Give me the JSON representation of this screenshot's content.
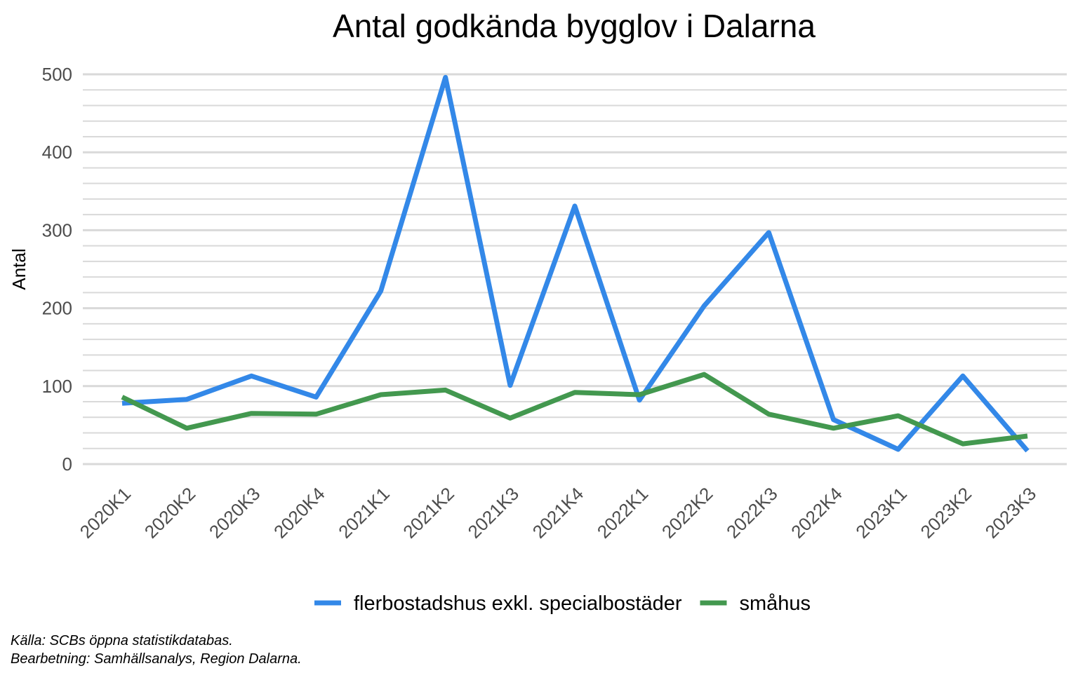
{
  "chart_data": {
    "type": "line",
    "title": "Antal godkända bygglov i Dalarna",
    "xlabel": "",
    "ylabel": "Antal",
    "categories": [
      "2020K1",
      "2020K2",
      "2020K3",
      "2020K4",
      "2021K1",
      "2021K2",
      "2021K3",
      "2021K4",
      "2022K1",
      "2022K2",
      "2022K3",
      "2022K4",
      "2023K1",
      "2023K2",
      "2023K3"
    ],
    "ylim": [
      0,
      500
    ],
    "yticks": [
      0,
      100,
      200,
      300,
      400,
      500
    ],
    "grid": true,
    "legend_position": "bottom",
    "series": [
      {
        "name": "flerbostadshus exkl. specialbostäder",
        "color": "#3388e8",
        "values": [
          78,
          83,
          113,
          86,
          222,
          496,
          101,
          331,
          82,
          203,
          297,
          57,
          19,
          113,
          17
        ]
      },
      {
        "name": "småhus",
        "color": "#43984f",
        "values": [
          86,
          46,
          65,
          64,
          89,
          95,
          59,
          92,
          89,
          115,
          64,
          46,
          62,
          26,
          36
        ]
      }
    ]
  },
  "caption": {
    "line1": "Källa: SCBs öppna statistikdatabas.",
    "line2": "Bearbetning: Samhällsanalys, Region Dalarna."
  }
}
